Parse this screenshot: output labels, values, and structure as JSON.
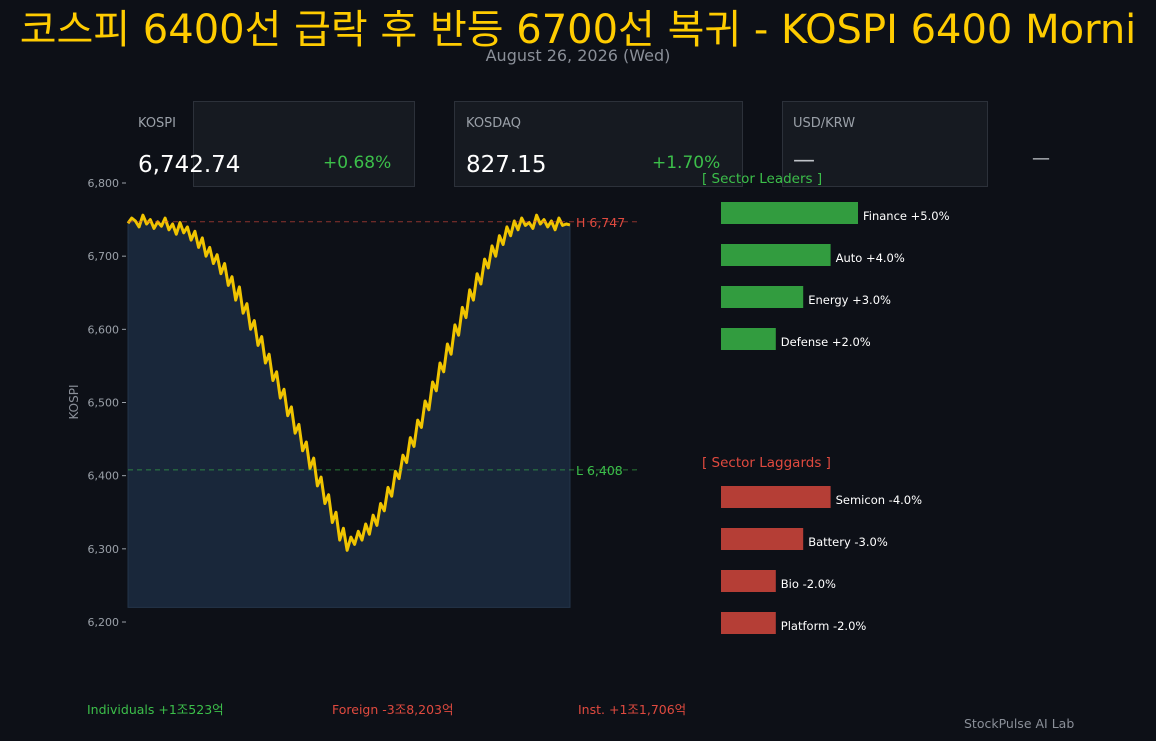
{
  "header": {
    "title": "코스피 6400선 급락 후 반등 6700선 복귀 - KOSPI 6400 Morni",
    "date": "August 26, 2026 (Wed)"
  },
  "cards": [
    {
      "label": "KOSPI",
      "value": "6,742.74",
      "change": "+0.68%"
    },
    {
      "label": "KOSDAQ",
      "value": "827.15",
      "change": "+1.70%"
    },
    {
      "label": "USD/KRW",
      "value": "—",
      "change": "—"
    }
  ],
  "colors": {
    "line": "#f0c400",
    "area": "#19273a",
    "up": "#3cbf4a",
    "down": "#e04a3f",
    "title": "#ffcc00",
    "background": "#0d1017"
  },
  "chart_data": [
    {
      "type": "line",
      "ylabel": "KOSPI",
      "ylim": [
        6200,
        6800
      ],
      "yticks": [
        "6,200",
        "6,300",
        "6,400",
        "6,500",
        "6,600",
        "6,700",
        "6,800"
      ],
      "grid": false,
      "series": [
        {
          "values": [
            6745,
            6752,
            6748,
            6740,
            6756,
            6744,
            6750,
            6738,
            6747,
            6741,
            6752,
            6736,
            6744,
            6730,
            6746,
            6732,
            6740,
            6722,
            6734,
            6712,
            6725,
            6700,
            6712,
            6690,
            6702,
            6676,
            6690,
            6660,
            6672,
            6640,
            6658,
            6622,
            6635,
            6600,
            6612,
            6578,
            6590,
            6554,
            6566,
            6530,
            6542,
            6506,
            6518,
            6482,
            6494,
            6458,
            6470,
            6434,
            6446,
            6410,
            6424,
            6386,
            6398,
            6362,
            6374,
            6336,
            6350,
            6312,
            6328,
            6298,
            6316,
            6306,
            6324,
            6312,
            6334,
            6320,
            6346,
            6332,
            6362,
            6352,
            6384,
            6372,
            6406,
            6396,
            6428,
            6418,
            6452,
            6440,
            6476,
            6466,
            6502,
            6490,
            6528,
            6516,
            6554,
            6542,
            6580,
            6566,
            6606,
            6592,
            6630,
            6616,
            6654,
            6640,
            6676,
            6662,
            6696,
            6684,
            6714,
            6700,
            6728,
            6716,
            6740,
            6728,
            6748,
            6736,
            6752,
            6742,
            6746,
            6738,
            6756,
            6744,
            6750,
            6740,
            6748,
            6736,
            6752,
            6742,
            6744,
            6742.74
          ]
        }
      ],
      "annotations": [
        {
          "label": "H 6,747",
          "value": 6747
        },
        {
          "label": "L 6,408",
          "value": 6408
        }
      ]
    },
    {
      "type": "bar",
      "title": "[ Sector Leaders ]",
      "categories": [
        "Finance",
        "Auto",
        "Energy",
        "Defense"
      ],
      "values": [
        5.0,
        4.0,
        3.0,
        2.0
      ],
      "labels": [
        "Finance +5.0%",
        "Auto +4.0%",
        "Energy +3.0%",
        "Defense +2.0%"
      ]
    },
    {
      "type": "bar",
      "title": "[ Sector Laggards ]",
      "categories": [
        "Semicon",
        "Battery",
        "Bio",
        "Platform"
      ],
      "values": [
        -4.0,
        -3.0,
        -2.0,
        -2.0
      ],
      "labels": [
        "Semicon -4.0%",
        "Battery -3.0%",
        "Bio -2.0%",
        "Platform -2.0%"
      ]
    }
  ],
  "flows": {
    "individuals": "Individuals +1조523억",
    "foreign": "Foreign -3조8,203억",
    "institutions": "Inst. +1조1,706억"
  },
  "footer": "StockPulse AI Lab"
}
